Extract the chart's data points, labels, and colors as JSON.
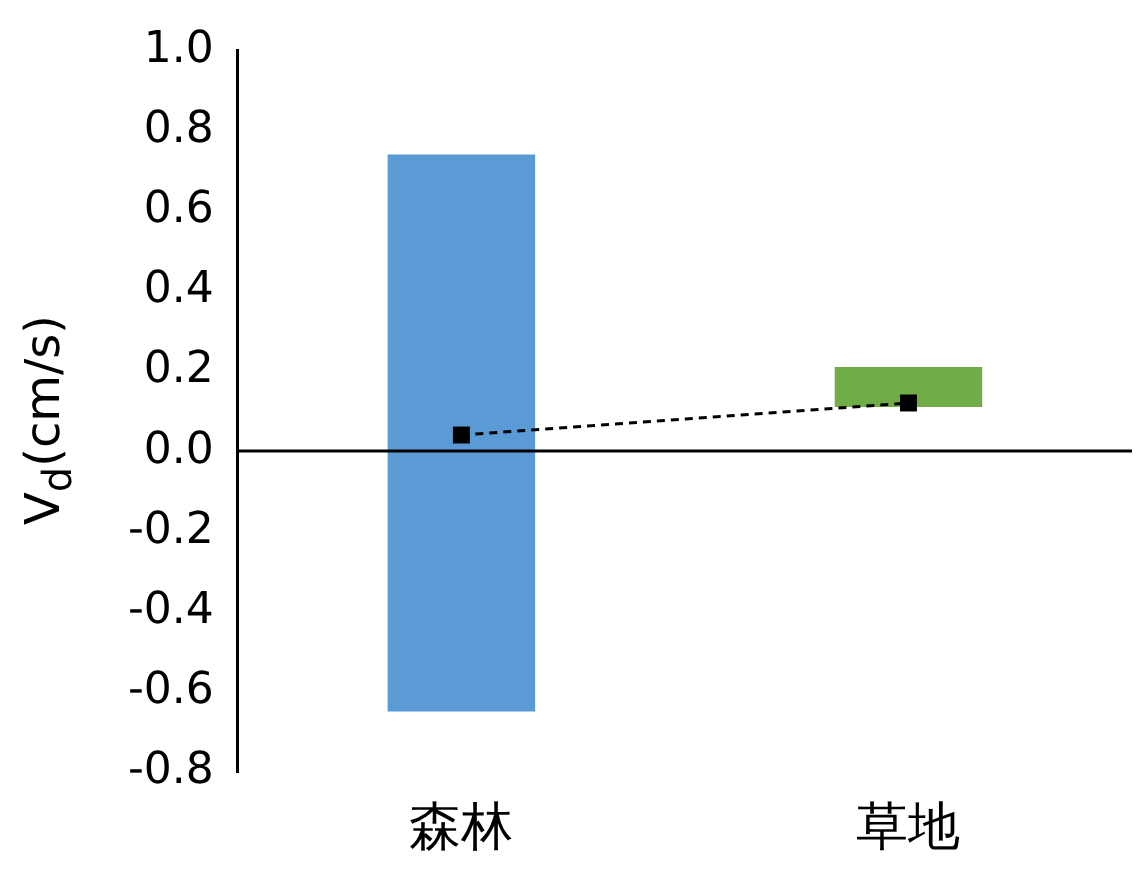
{
  "chart_data": {
    "type": "bar",
    "ylabel": "V$_{d}$(cm/s)",
    "categories": [
      "森林",
      "草地"
    ],
    "series": [
      {
        "colors": [
          "#5b9bd5",
          "#70ad47"
        ],
        "base": [
          -0.65,
          0.11
        ],
        "values": [
          1.39,
          0.1
        ]
      },
      {
        "type": "line",
        "color": "#000000",
        "values": [
          0.04,
          0.12
        ],
        "line_style": "dashed",
        "marker": "square"
      }
    ],
    "ylim": [
      -0.8,
      1.0
    ],
    "yticks": [
      -0.8,
      -0.6,
      -0.4,
      -0.2,
      {
        "value": 0,
        "label": "0.0"
      },
      0.2,
      0.4,
      0.6,
      0.8,
      {
        "value": 1,
        "label": "1.0"
      }
    ],
    "ref_lines": [
      {
        "axis": "y",
        "value": 0,
        "color": "#000000"
      }
    ],
    "grid": false,
    "legend": false
  }
}
